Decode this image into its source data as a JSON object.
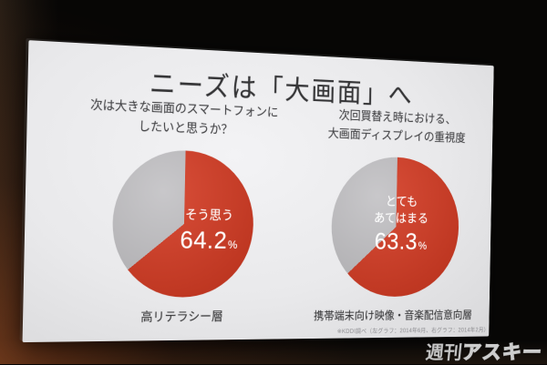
{
  "slide": {
    "title": "ニーズは「大画面」へ",
    "panels": [
      {
        "question": [
          "次は大きな画面のスマートフォンに",
          "したいと思うか？"
        ],
        "slice_label_lines": [
          "そう思う"
        ],
        "value_text": "64.2",
        "unit": "%",
        "caption": "高リテラシー層"
      },
      {
        "question": [
          "次回買替え時における、",
          "大画面ディスプレイの重視度"
        ],
        "slice_label_lines": [
          "とても",
          "あてはまる"
        ],
        "value_text": "63.3",
        "unit": "%",
        "caption": "携帯端末向け映像・音楽配信意向層"
      }
    ],
    "footnote": "※KDDI調べ（左グラフ：2014年6月、右グラフ：2014年2月）"
  },
  "watermark": {
    "part1": "週刊",
    "part2": "アスキー"
  },
  "colors": {
    "accent_red": "#d43a22",
    "slice_gray": "#c2c1c4",
    "slide_white": "#e9e9eb"
  },
  "chart_data": [
    {
      "type": "pie",
      "title": "次は大きな画面のスマートフォンにしたいと思うか？",
      "labels": [
        "そう思う",
        ""
      ],
      "values": [
        64.2,
        35.8
      ],
      "colors": [
        "#d43a22",
        "#c2c1c4"
      ],
      "start_angle_deg": 0,
      "direction": "clockwise",
      "caption": "高リテラシー層",
      "value_labels": [
        "64.2%",
        ""
      ]
    },
    {
      "type": "pie",
      "title": "次回買替え時における、大画面ディスプレイの重視度",
      "labels": [
        "とてもあてはまる",
        ""
      ],
      "values": [
        63.3,
        36.7
      ],
      "colors": [
        "#d43a22",
        "#c2c1c4"
      ],
      "start_angle_deg": 0,
      "direction": "clockwise",
      "caption": "携帯端末向け映像・音楽配信意向層",
      "value_labels": [
        "63.3%",
        ""
      ]
    }
  ]
}
